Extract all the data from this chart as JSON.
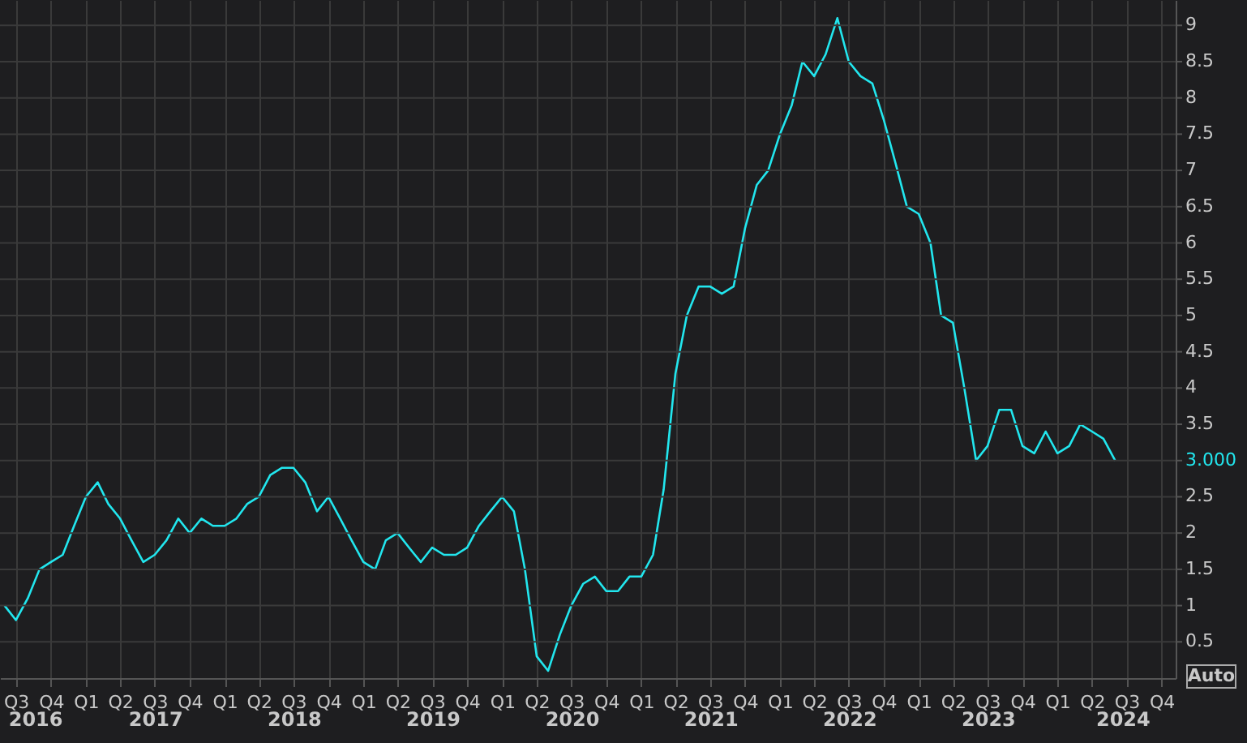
{
  "chart_data": {
    "type": "line",
    "x": [
      "2016-06",
      "2016-07",
      "2016-08",
      "2016-09",
      "2016-10",
      "2016-11",
      "2016-12",
      "2017-01",
      "2017-02",
      "2017-03",
      "2017-04",
      "2017-05",
      "2017-06",
      "2017-07",
      "2017-08",
      "2017-09",
      "2017-10",
      "2017-11",
      "2017-12",
      "2018-01",
      "2018-02",
      "2018-03",
      "2018-04",
      "2018-05",
      "2018-06",
      "2018-07",
      "2018-08",
      "2018-09",
      "2018-10",
      "2018-11",
      "2018-12",
      "2019-01",
      "2019-02",
      "2019-03",
      "2019-04",
      "2019-05",
      "2019-06",
      "2019-07",
      "2019-08",
      "2019-09",
      "2019-10",
      "2019-11",
      "2019-12",
      "2020-01",
      "2020-02",
      "2020-03",
      "2020-04",
      "2020-05",
      "2020-06",
      "2020-07",
      "2020-08",
      "2020-09",
      "2020-10",
      "2020-11",
      "2020-12",
      "2021-01",
      "2021-02",
      "2021-03",
      "2021-04",
      "2021-05",
      "2021-06",
      "2021-07",
      "2021-08",
      "2021-09",
      "2021-10",
      "2021-11",
      "2021-12",
      "2022-01",
      "2022-02",
      "2022-03",
      "2022-04",
      "2022-05",
      "2022-06",
      "2022-07",
      "2022-08",
      "2022-09",
      "2022-10",
      "2022-11",
      "2022-12",
      "2023-01",
      "2023-02",
      "2023-03",
      "2023-04",
      "2023-05",
      "2023-06",
      "2023-07",
      "2023-08",
      "2023-09",
      "2023-10",
      "2023-11",
      "2023-12",
      "2024-01",
      "2024-02",
      "2024-03",
      "2024-04",
      "2024-05",
      "2024-06"
    ],
    "series": [
      {
        "color": "#22e6ee",
        "values": [
          1.0,
          0.8,
          1.1,
          1.5,
          1.6,
          1.7,
          2.1,
          2.5,
          2.7,
          2.4,
          2.2,
          1.9,
          1.6,
          1.7,
          1.9,
          2.2,
          2.0,
          2.2,
          2.1,
          2.1,
          2.2,
          2.4,
          2.5,
          2.8,
          2.9,
          2.9,
          2.7,
          2.3,
          2.5,
          2.2,
          1.9,
          1.6,
          1.5,
          1.9,
          2.0,
          1.8,
          1.6,
          1.8,
          1.7,
          1.7,
          1.8,
          2.1,
          2.3,
          2.5,
          2.3,
          1.5,
          0.3,
          0.1,
          0.6,
          1.0,
          1.3,
          1.4,
          1.2,
          1.2,
          1.4,
          1.4,
          1.7,
          2.6,
          4.2,
          5.0,
          5.4,
          5.4,
          5.3,
          5.4,
          6.2,
          6.8,
          7.0,
          7.5,
          7.9,
          8.5,
          8.3,
          8.6,
          9.1,
          8.5,
          8.3,
          8.2,
          7.7,
          7.1,
          6.5,
          6.4,
          6.0,
          5.0,
          4.9,
          4.0,
          3.0,
          3.2,
          3.7,
          3.7,
          3.2,
          3.1,
          3.4,
          3.1,
          3.2,
          3.5,
          3.4,
          3.3,
          3.0
        ]
      }
    ],
    "xlim": [
      "2016-05-20",
      "2024-11-07"
    ],
    "xticks": [
      {
        "value": "2016-07",
        "label": "Q3"
      },
      {
        "value": "2016-10",
        "label": "Q4"
      },
      {
        "value": "2017-01",
        "label": "Q1"
      },
      {
        "value": "2017-04",
        "label": "Q2"
      },
      {
        "value": "2017-07",
        "label": "Q3"
      },
      {
        "value": "2017-10",
        "label": "Q4"
      },
      {
        "value": "2018-01",
        "label": "Q1"
      },
      {
        "value": "2018-04",
        "label": "Q2"
      },
      {
        "value": "2018-07",
        "label": "Q3"
      },
      {
        "value": "2018-10",
        "label": "Q4"
      },
      {
        "value": "2019-01",
        "label": "Q1"
      },
      {
        "value": "2019-04",
        "label": "Q2"
      },
      {
        "value": "2019-07",
        "label": "Q3"
      },
      {
        "value": "2019-10",
        "label": "Q4"
      },
      {
        "value": "2020-01",
        "label": "Q1"
      },
      {
        "value": "2020-04",
        "label": "Q2"
      },
      {
        "value": "2020-07",
        "label": "Q3"
      },
      {
        "value": "2020-10",
        "label": "Q4"
      },
      {
        "value": "2021-01",
        "label": "Q1"
      },
      {
        "value": "2021-04",
        "label": "Q2"
      },
      {
        "value": "2021-07",
        "label": "Q3"
      },
      {
        "value": "2021-10",
        "label": "Q4"
      },
      {
        "value": "2022-01",
        "label": "Q1"
      },
      {
        "value": "2022-04",
        "label": "Q2"
      },
      {
        "value": "2022-07",
        "label": "Q3"
      },
      {
        "value": "2022-10",
        "label": "Q4"
      },
      {
        "value": "2023-01",
        "label": "Q1"
      },
      {
        "value": "2023-04",
        "label": "Q2"
      },
      {
        "value": "2023-07",
        "label": "Q3"
      },
      {
        "value": "2023-10",
        "label": "Q4"
      },
      {
        "value": "2024-01",
        "label": "Q1"
      },
      {
        "value": "2024-04",
        "label": "Q2"
      },
      {
        "value": "2024-07",
        "label": "Q3"
      },
      {
        "value": "2024-10",
        "label": "Q4"
      }
    ],
    "x2ticks": [
      {
        "value": "2016-08-20",
        "label": "2016"
      },
      {
        "value": "2017-07-02",
        "label": "2017"
      },
      {
        "value": "2018-07-02",
        "label": "2018"
      },
      {
        "value": "2019-07-02",
        "label": "2019"
      },
      {
        "value": "2020-07-02",
        "label": "2020"
      },
      {
        "value": "2021-07-02",
        "label": "2021"
      },
      {
        "value": "2022-07-02",
        "label": "2022"
      },
      {
        "value": "2023-07-02",
        "label": "2023"
      },
      {
        "value": "2024-06-20",
        "label": "2024"
      }
    ],
    "ylim": [
      0,
      9.35
    ],
    "yticks": [
      0.5,
      1,
      1.5,
      2,
      2.5,
      {
        "value": 3,
        "label": "3.000"
      },
      3.5,
      4,
      4.5,
      5,
      5.5,
      6,
      6.5,
      7,
      7.5,
      8,
      8.5,
      9
    ],
    "grid": true,
    "x2lim": [
      "2016-05-20",
      "2024-11-07"
    ],
    "annotations": [
      "Auto"
    ]
  }
}
